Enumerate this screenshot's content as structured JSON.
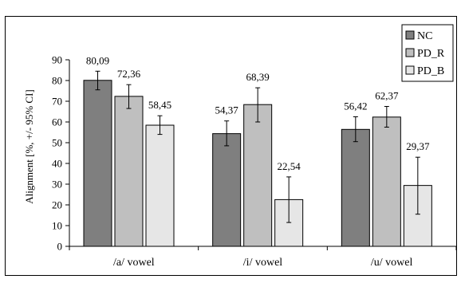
{
  "chart_data": {
    "type": "bar",
    "categories": [
      "/a/ vowel",
      "/i/ vowel",
      "/u/ vowel"
    ],
    "series": [
      {
        "name": "NC",
        "values": [
          80.09,
          54.37,
          56.42
        ],
        "value_labels": [
          "80,09",
          "54,37",
          "56,42"
        ],
        "ci_low": [
          75.5,
          48.5,
          50.5
        ],
        "ci_high": [
          84.5,
          60.5,
          62.5
        ],
        "color": "#7f7f7f"
      },
      {
        "name": "PD_R",
        "values": [
          72.36,
          68.39,
          62.37
        ],
        "value_labels": [
          "72,36",
          "68,39",
          "62,37"
        ],
        "ci_low": [
          66.5,
          60.0,
          57.5
        ],
        "ci_high": [
          78.0,
          76.5,
          67.5
        ],
        "color": "#bfbfbf"
      },
      {
        "name": "PD_B",
        "values": [
          58.45,
          22.54,
          29.37
        ],
        "value_labels": [
          "58,45",
          "22,54",
          "29,37"
        ],
        "ci_low": [
          54.0,
          11.5,
          15.5
        ],
        "ci_high": [
          63.0,
          33.5,
          43.0
        ],
        "color": "#e6e6e6"
      }
    ],
    "ylabel": "Alignment [%, +/- 95% CI]",
    "ylim": [
      0,
      90
    ],
    "yticks": [
      "0",
      "10",
      "20",
      "30",
      "40",
      "50",
      "60",
      "70",
      "80",
      "90"
    ],
    "grid": false,
    "legend": "top-right",
    "error_bars": "95% CI"
  }
}
